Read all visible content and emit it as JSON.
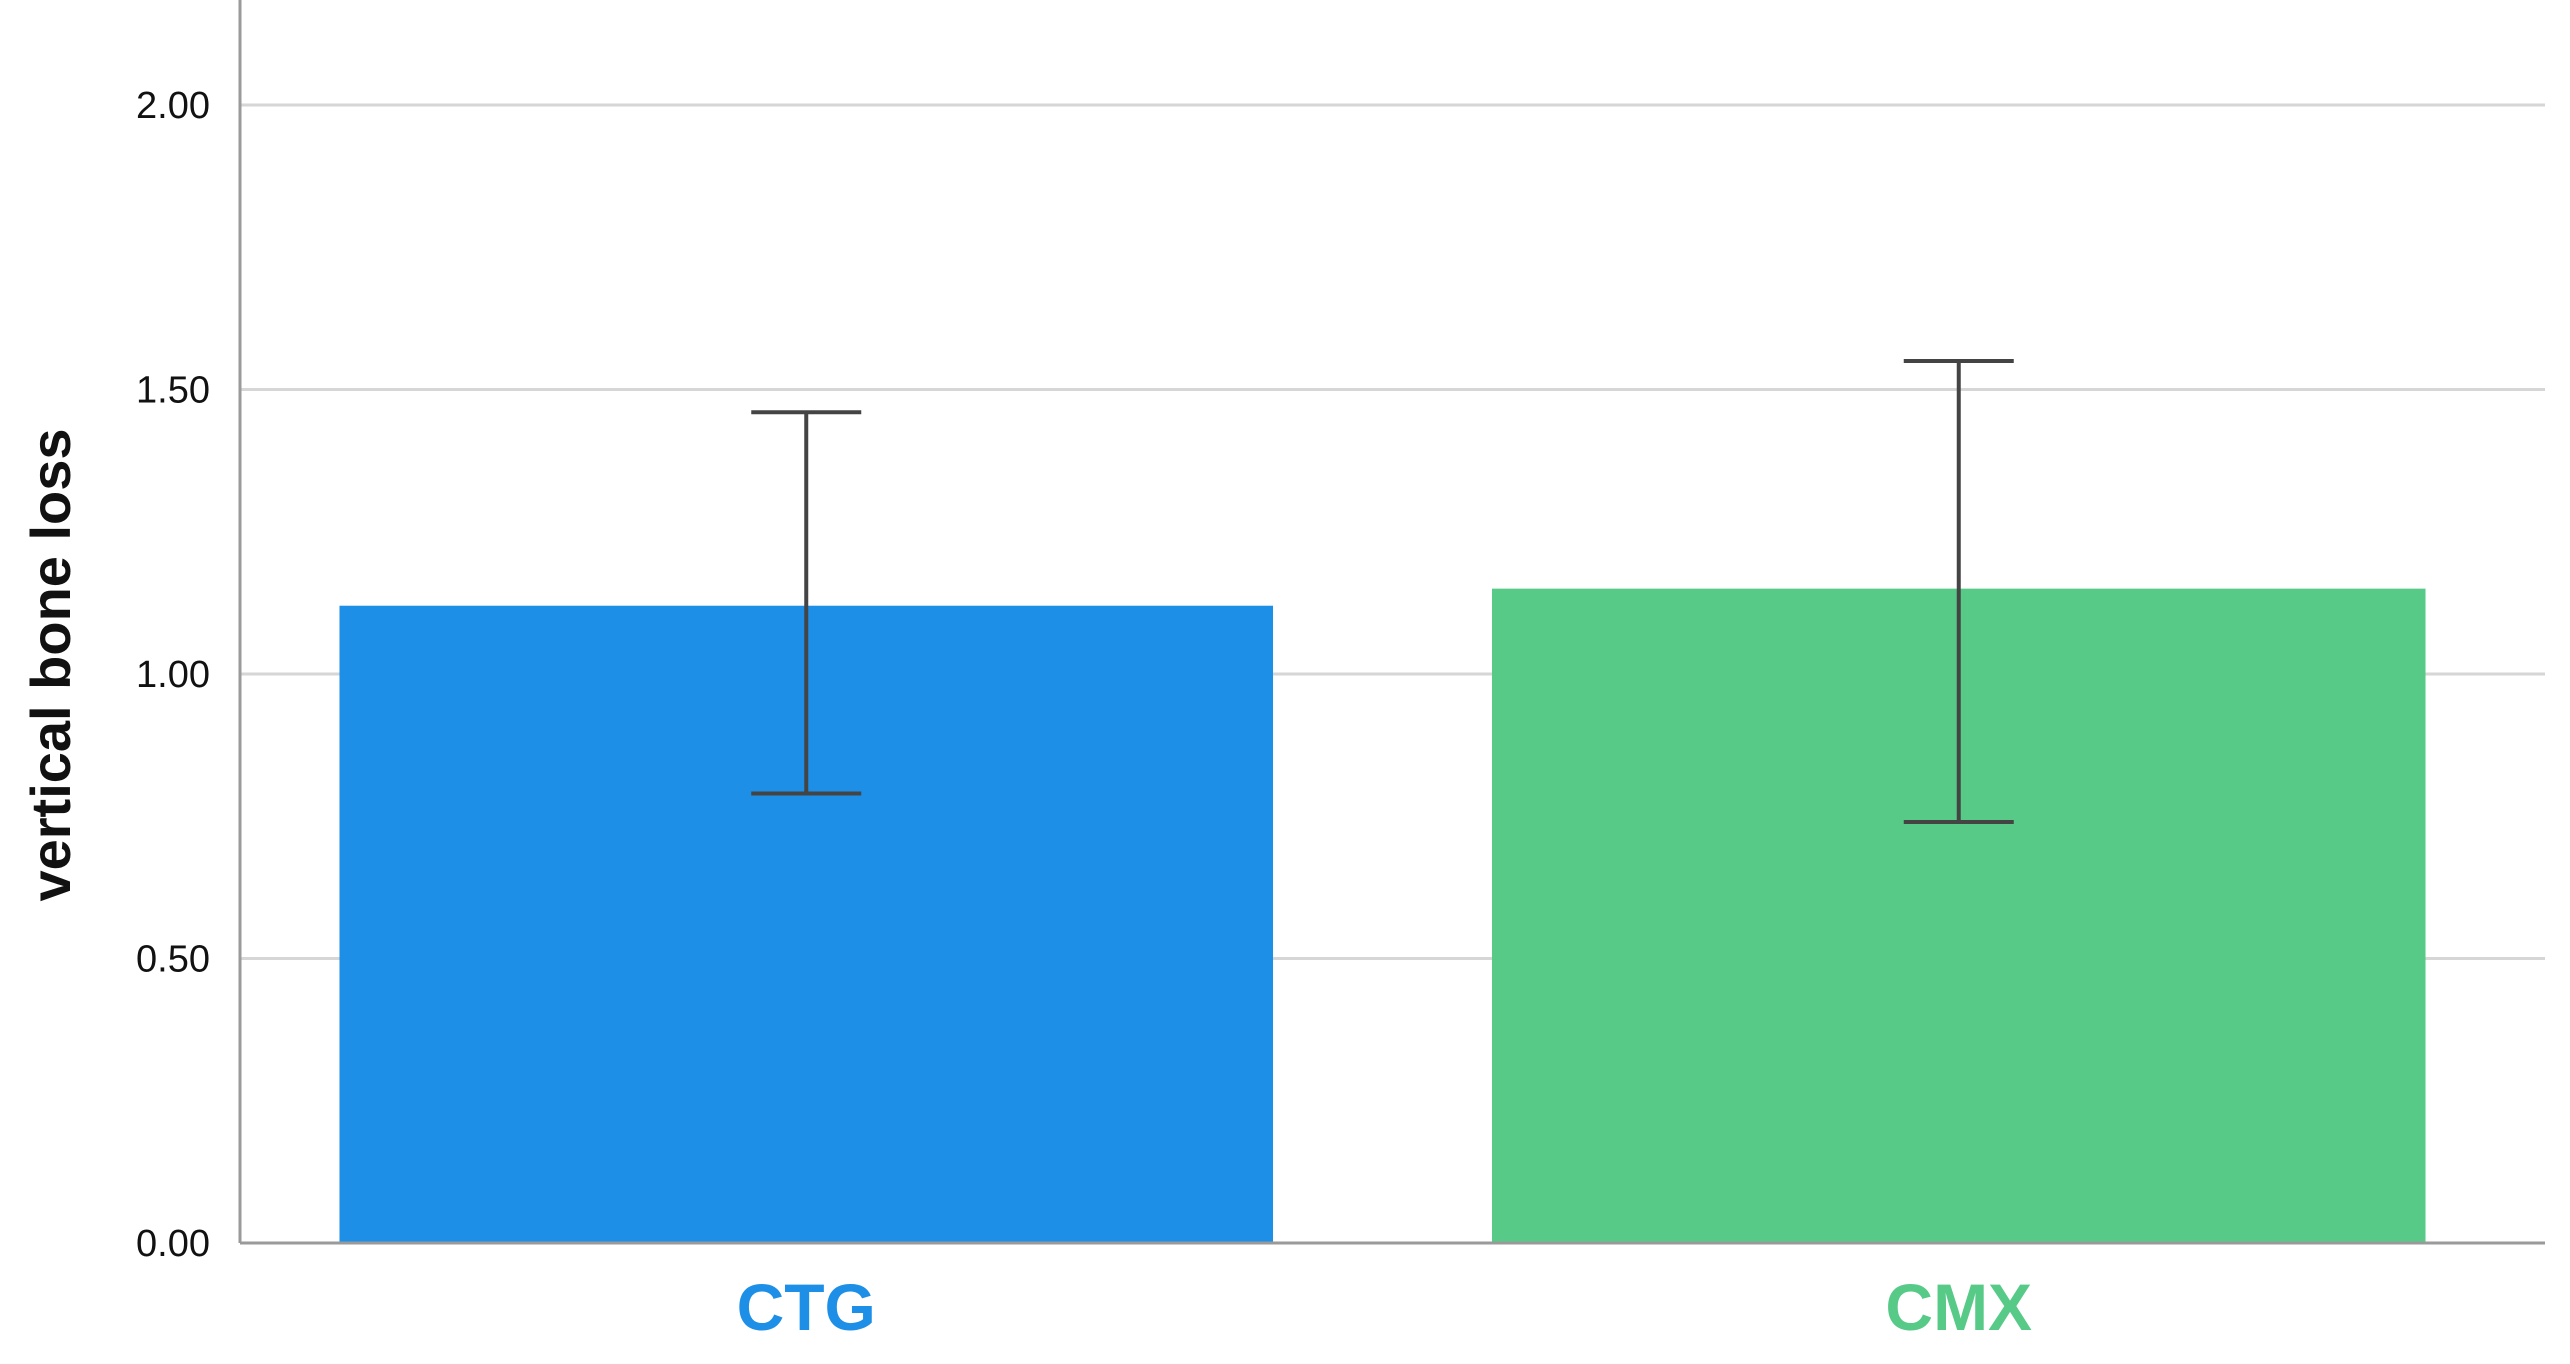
{
  "chart_data": {
    "type": "bar",
    "title": "",
    "xlabel": "",
    "ylabel": "vertical bone loss",
    "categories": [
      "CTG",
      "CMX"
    ],
    "values": [
      1.12,
      1.15
    ],
    "error_low": [
      0.79,
      0.74
    ],
    "error_high": [
      1.46,
      1.55
    ],
    "colors": [
      "#1d8fe6",
      "#58ca88"
    ],
    "ylim": [
      0,
      2.1
    ],
    "yticks": [
      0.0,
      0.5,
      1.0,
      1.5,
      2.0
    ],
    "ytick_labels": [
      "0.00",
      "0.50",
      "1.00",
      "1.50",
      "2.00"
    ],
    "grid": true,
    "legend": "none"
  }
}
